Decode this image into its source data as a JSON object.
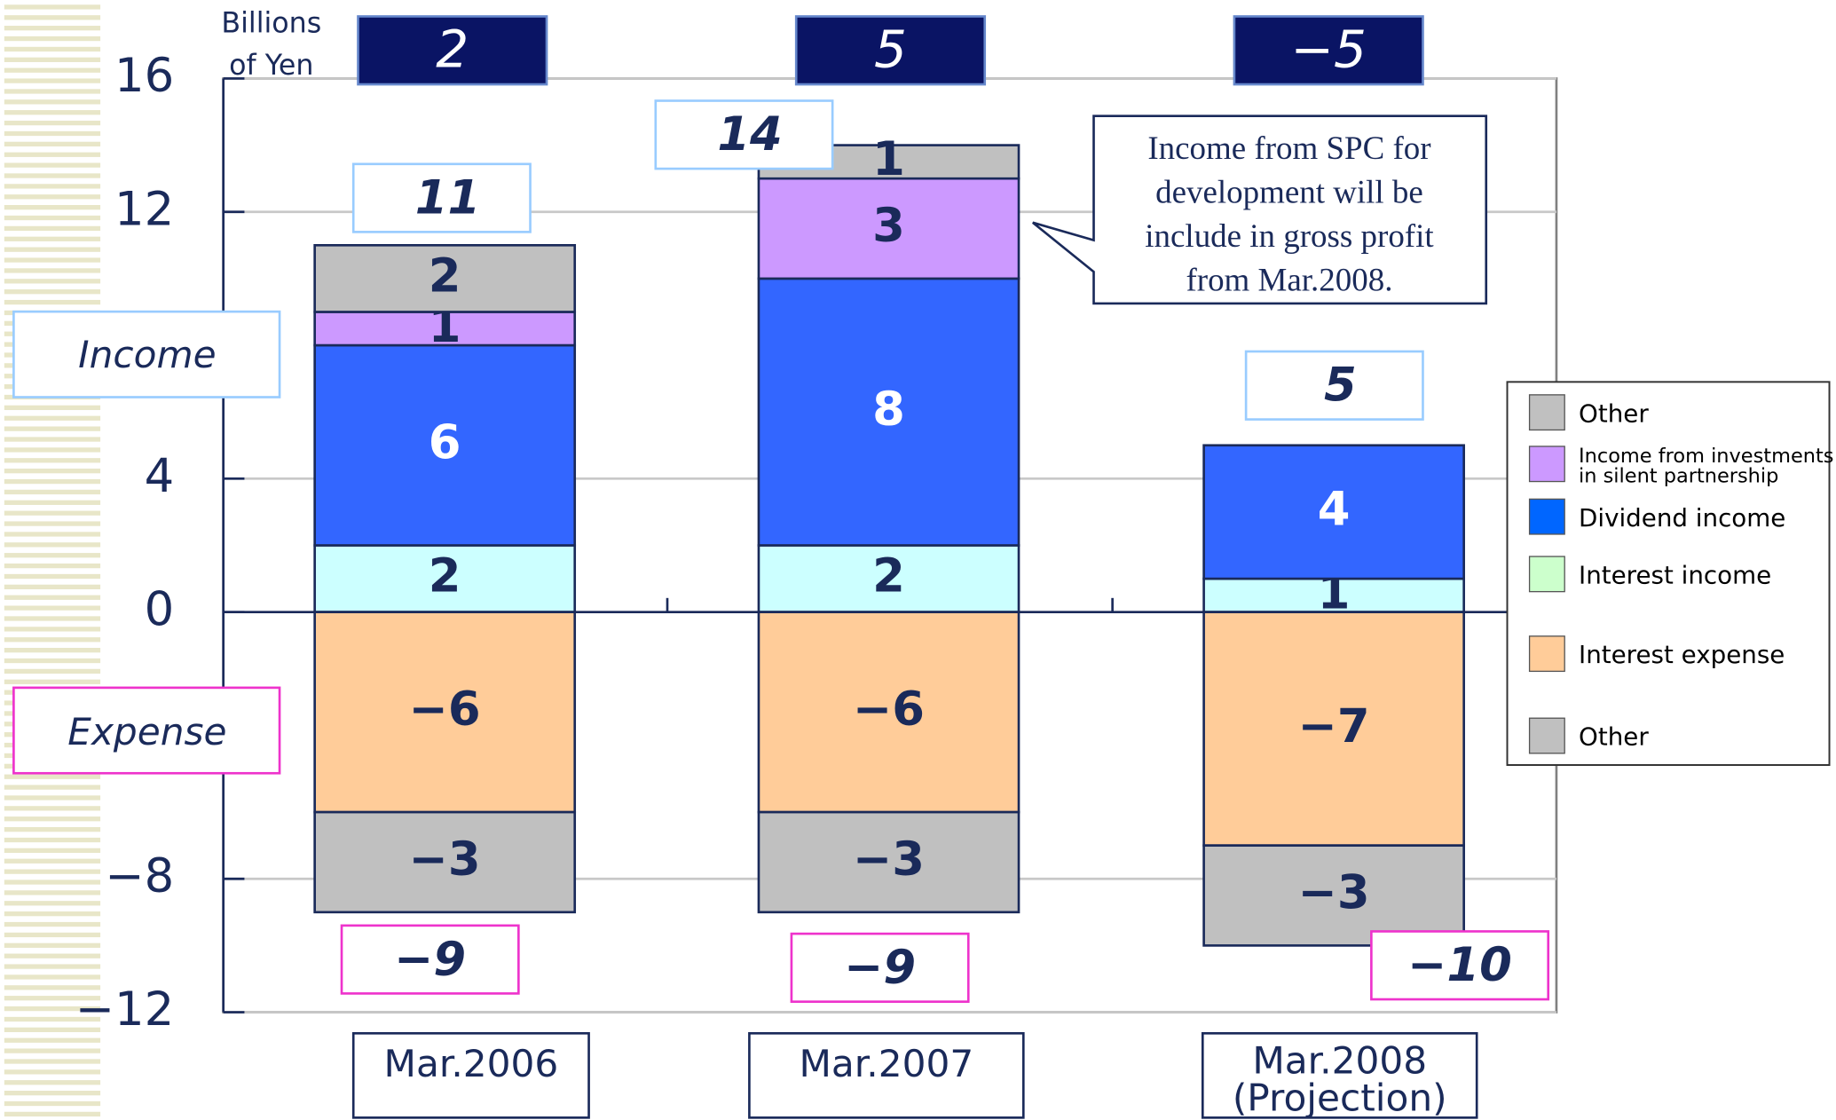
{
  "chart_data": {
    "type": "bar",
    "stacked": true,
    "y_axis_label": "Billions\nof Yen",
    "categories": [
      "Mar.2006",
      "Mar.2007",
      "Mar.2008\n(Projection)"
    ],
    "ylim": [
      -12,
      16
    ],
    "yticks": [
      {
        "value": 16,
        "label": "16"
      },
      {
        "value": 12,
        "label": "12"
      },
      {
        "value": 4,
        "label": "4"
      },
      {
        "value": 0,
        "label": "0"
      },
      {
        "value": -8,
        "label": "−8"
      },
      {
        "value": -12,
        "label": "−12"
      }
    ],
    "grid": true,
    "legend_position": "right",
    "side_labels": {
      "income": "Income",
      "expense": "Expense"
    },
    "series": [
      {
        "name": "Interest income",
        "color": "#ccffff",
        "legend_color": "#ccffcc",
        "values": [
          2,
          2,
          1
        ],
        "value_labels": [
          "2",
          "2",
          "1"
        ]
      },
      {
        "name": "Dividend income",
        "color": "#3366ff",
        "legend_color": "#0066ff",
        "values": [
          6,
          8,
          4
        ],
        "value_labels": [
          "6",
          "8",
          "4"
        ]
      },
      {
        "name": "Income from investments\nin silent partnership",
        "color": "#cc99ff",
        "legend_color": "#cc99ff",
        "values": [
          1,
          3,
          null
        ],
        "value_labels": [
          "1",
          "3",
          null
        ]
      },
      {
        "name": "Other",
        "color": "#c0c0c0",
        "legend_color": "#c0c0c0",
        "values": [
          2,
          1,
          null
        ],
        "value_labels": [
          "2",
          "1",
          null
        ]
      },
      {
        "name": "Interest expense",
        "color": "#ffcc99",
        "legend_color": "#ffcc99",
        "values": [
          -6,
          -6,
          -7
        ],
        "value_labels": [
          "−6",
          "−6",
          "−7"
        ]
      },
      {
        "name": "Other",
        "color": "#c0c0c0",
        "legend_color": "#c0c0c0",
        "values": [
          -3,
          -3,
          -3
        ],
        "value_labels": [
          "−3",
          "−3",
          "−3"
        ]
      }
    ],
    "legend_order": [
      3,
      2,
      1,
      0,
      4,
      5
    ],
    "net_totals": {
      "values": [
        2,
        5,
        -5
      ],
      "value_labels": [
        "2",
        "5",
        "−5"
      ]
    },
    "income_totals": {
      "values": [
        11,
        14,
        5
      ],
      "value_labels": [
        "11",
        "14",
        "5"
      ]
    },
    "expense_totals": {
      "values": [
        -9,
        -9,
        -10
      ],
      "value_labels": [
        "−9",
        "−9",
        "−10"
      ]
    },
    "annotation_lines": [
      "Income from SPC for",
      "development will be",
      "include in  gross profit",
      "from Mar.2008."
    ]
  }
}
